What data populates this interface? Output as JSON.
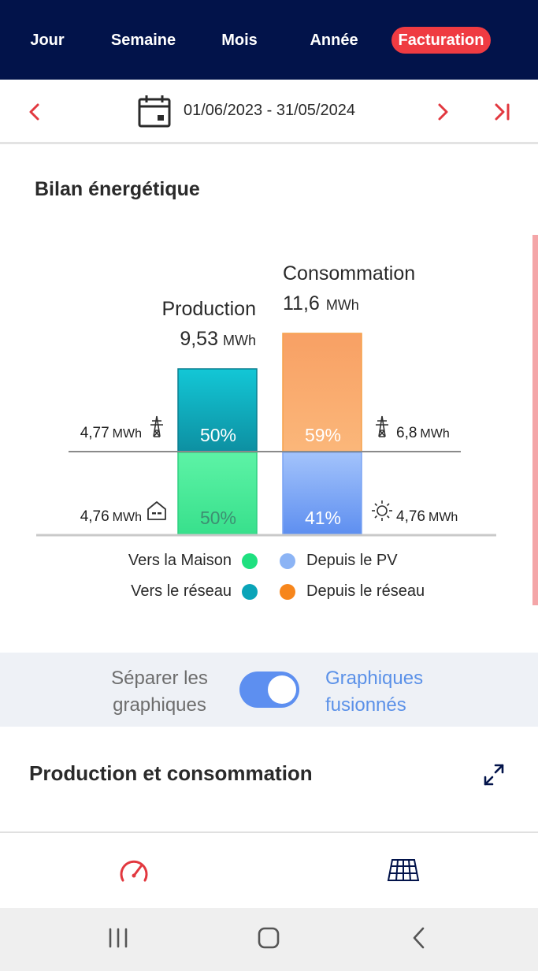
{
  "tabs": [
    {
      "label": "Jour",
      "active": false
    },
    {
      "label": "Semaine",
      "active": false
    },
    {
      "label": "Mois",
      "active": false
    },
    {
      "label": "Année",
      "active": false
    },
    {
      "label": "Facturation",
      "active": true
    }
  ],
  "date_nav": {
    "range": "01/06/2023 - 31/05/2024",
    "prev_icon": "chevron-left-icon",
    "next_icon": "chevron-right-icon",
    "last_icon": "skip-to-end-icon",
    "calendar_icon": "calendar-icon"
  },
  "energy_balance": {
    "title": "Bilan énergétique",
    "production": {
      "label": "Production",
      "total_value": "9,53",
      "total_unit": "MWh",
      "to_grid": {
        "value": "4,77",
        "unit": "MWh",
        "percent": "50%",
        "icon": "power-pylon-icon"
      },
      "to_home": {
        "value": "4,76",
        "unit": "MWh",
        "percent": "50%",
        "icon": "house-icon"
      }
    },
    "consumption": {
      "label": "Consommation",
      "total_value": "11,6",
      "total_unit": "MWh",
      "from_grid": {
        "value": "6,8",
        "unit": "MWh",
        "percent": "59%",
        "icon": "power-pylon-icon"
      },
      "from_pv": {
        "value": "4,76",
        "unit": "MWh",
        "percent": "41%",
        "icon": "sun-icon"
      }
    },
    "legend": [
      {
        "label": "Vers la Maison",
        "color": "#1ee07f"
      },
      {
        "label": "Vers le réseau",
        "color": "#0aa4b8"
      },
      {
        "label": "Depuis le PV",
        "color": "#8cb4f5"
      },
      {
        "label": "Depuis le réseau",
        "color": "#f7861c"
      }
    ]
  },
  "chart_data": {
    "type": "bar",
    "categories": [
      "Production",
      "Consommation"
    ],
    "series": [
      {
        "name": "Vers la Maison",
        "values": [
          4.76,
          null
        ]
      },
      {
        "name": "Vers le réseau",
        "values": [
          4.77,
          null
        ]
      },
      {
        "name": "Depuis le PV",
        "values": [
          null,
          4.76
        ]
      },
      {
        "name": "Depuis le réseau",
        "values": [
          null,
          6.8
        ]
      }
    ],
    "totals": [
      9.53,
      11.6
    ],
    "unit": "MWh",
    "stacked": true
  },
  "toggle": {
    "left_label_1": "Séparer les",
    "left_label_2": "graphiques",
    "right_label_1": "Graphiques",
    "right_label_2": "fusionnés",
    "state": "on"
  },
  "section": {
    "title": "Production et consommation",
    "expand_icon": "expand-icon"
  },
  "bottom_nav": [
    {
      "icon": "gauge-icon",
      "color": "#e2383f"
    },
    {
      "icon": "solar-panel-icon",
      "color": "#02134a"
    }
  ],
  "system_nav": [
    {
      "icon": "recent-apps-icon"
    },
    {
      "icon": "home-icon"
    },
    {
      "icon": "back-icon"
    }
  ]
}
